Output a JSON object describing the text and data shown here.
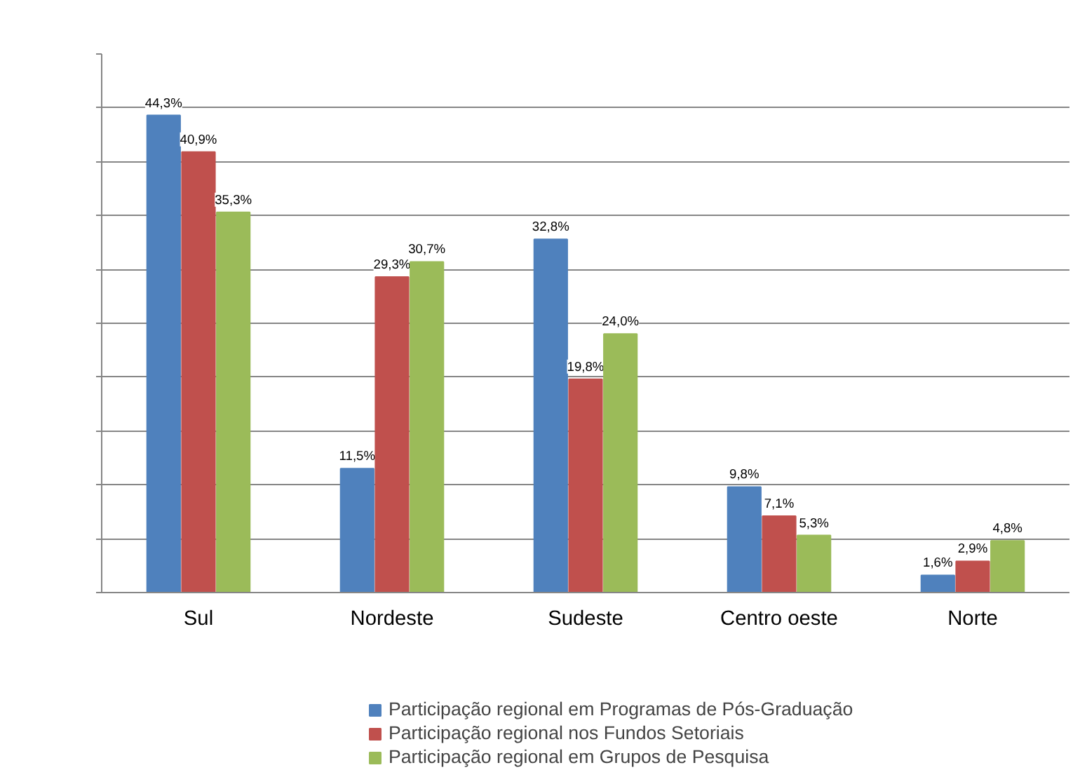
{
  "chart_data": {
    "type": "bar",
    "categories": [
      "Sul",
      "Nordeste",
      "Sudeste",
      "Centro oeste",
      "Norte"
    ],
    "series": [
      {
        "name": "Participação regional em Programas de Pós-Graduação",
        "color": "#4f81bd",
        "values": [
          44.3,
          11.5,
          32.8,
          9.8,
          1.6
        ],
        "value_labels": [
          "44,3%",
          "11,5%",
          "32,8%",
          "9,8%",
          "1,6%"
        ]
      },
      {
        "name": "Participação regional nos Fundos Setoriais",
        "color": "#c0504d",
        "values": [
          40.9,
          29.3,
          19.8,
          7.1,
          2.9
        ],
        "value_labels": [
          "40,9%",
          "29,3%",
          "19,8%",
          "7,1%",
          "2,9%"
        ]
      },
      {
        "name": "Participação regional em Grupos de Pesquisa",
        "color": "#9bbb59",
        "values": [
          35.3,
          30.7,
          24.0,
          5.3,
          4.8
        ],
        "value_labels": [
          "35,3%",
          "30,7%",
          "24,0%",
          "5,3%",
          "4,8%"
        ]
      }
    ],
    "ylim": [
      0,
      50
    ],
    "yticks": [
      {
        "value": 0,
        "label": null
      },
      {
        "value": 5,
        "label": null
      },
      {
        "value": 10,
        "label": null
      },
      {
        "value": 15,
        "label": null
      },
      {
        "value": 20,
        "label": null
      },
      {
        "value": 25,
        "label": null
      },
      {
        "value": 30,
        "label": null
      },
      {
        "value": 35,
        "label": null
      },
      {
        "value": 40,
        "label": null
      },
      {
        "value": 45,
        "label": null
      },
      {
        "value": 50,
        "label": null
      }
    ],
    "grid": "y",
    "tick_labels": "x",
    "legend": "bottom"
  }
}
